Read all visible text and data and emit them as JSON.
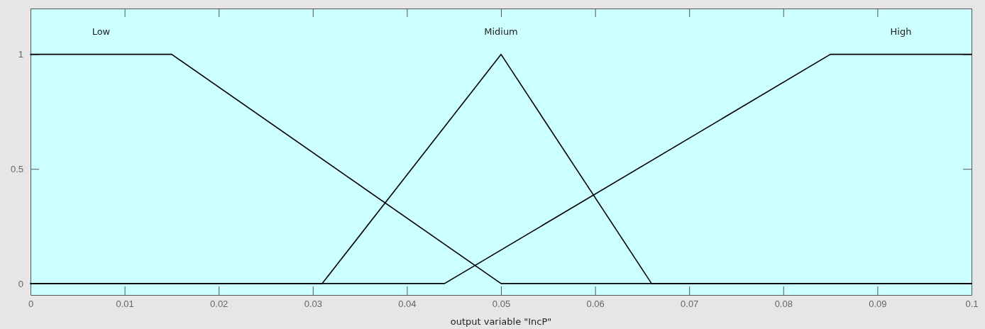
{
  "chart_data": {
    "type": "line",
    "xlabel": "output variable \"IncP\"",
    "xlim": [
      0,
      0.1
    ],
    "xticks": [
      0,
      0.01,
      0.02,
      0.03,
      0.04,
      0.05,
      0.06,
      0.07,
      0.08,
      0.09,
      0.1
    ],
    "ylim": [
      -0.05,
      1.2
    ],
    "yticks": [
      0,
      0.5,
      1
    ],
    "marker": "none",
    "line_style": "solid",
    "grid": false,
    "series": [
      {
        "name": "Low",
        "color": "#000000",
        "x": [
          0,
          0.015,
          0.05,
          0.1
        ],
        "values": [
          1,
          1,
          0,
          0
        ]
      },
      {
        "name": "Midium",
        "color": "#000000",
        "x": [
          0,
          0.031,
          0.05,
          0.066,
          0.1
        ],
        "values": [
          0,
          0,
          1,
          0,
          0
        ]
      },
      {
        "name": "High",
        "color": "#000000",
        "x": [
          0,
          0.044,
          0.085,
          0.1
        ],
        "values": [
          0,
          0,
          1,
          1
        ]
      }
    ]
  }
}
